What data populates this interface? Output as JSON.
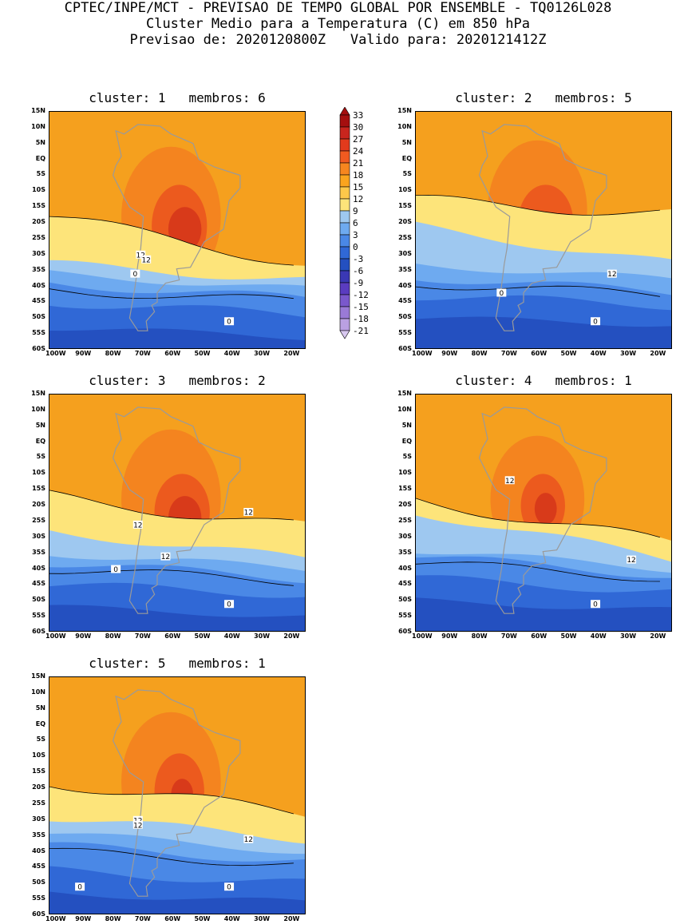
{
  "header": {
    "line1": "CPTEC/INPE/MCT - PREVISAO DE TEMPO GLOBAL POR ENSEMBLE - TQ0126L028",
    "line2": "Cluster Medio para a Temperatura (C) em 850 hPa",
    "line3": "Previsao de: 2020120800Z   Valido para: 2020121412Z"
  },
  "lat_labels": [
    "15N",
    "10N",
    "5N",
    "EQ",
    "5S",
    "10S",
    "15S",
    "20S",
    "25S",
    "30S",
    "35S",
    "40S",
    "45S",
    "50S",
    "55S",
    "60S"
  ],
  "lon_labels": [
    "100W",
    "90W",
    "80W",
    "70W",
    "60W",
    "50W",
    "40W",
    "30W",
    "20W"
  ],
  "colorbar": {
    "levels": [
      "33",
      "30",
      "27",
      "24",
      "21",
      "18",
      "15",
      "12",
      "9",
      "6",
      "3",
      "0",
      "-3",
      "-6",
      "-9",
      "-12",
      "-15",
      "-18",
      "-21"
    ],
    "colors": [
      "#a50f0f",
      "#c8251e",
      "#e23a1c",
      "#f05a20",
      "#f7861f",
      "#fba41e",
      "#fdc84a",
      "#fde47a",
      "#9ec8f0",
      "#6eaaf0",
      "#4a88e6",
      "#3068d6",
      "#2450c0",
      "#3a38b4",
      "#5a3cc0",
      "#7a58cc",
      "#9a7ad6",
      "#baa0e2",
      "#d8c8f0"
    ]
  },
  "panels": [
    {
      "title": "cluster: 1   membros: 6",
      "contour_labels": [
        "12",
        "12",
        "0",
        "0"
      ],
      "colors": {
        "warm": "#f5a01e"
      }
    },
    {
      "title": "cluster: 2   membros: 5",
      "contour_labels": [
        "12",
        "0",
        "0"
      ],
      "colors": {
        "warm": "#f5a01e"
      }
    },
    {
      "title": "cluster: 3   membros: 2",
      "contour_labels": [
        "12",
        "12",
        "12",
        "0",
        "0"
      ],
      "colors": {
        "warm": "#f5a01e"
      }
    },
    {
      "title": "cluster: 4   membros: 1",
      "contour_labels": [
        "12",
        "12",
        "0"
      ],
      "colors": {
        "warm": "#f5a01e"
      }
    },
    {
      "title": "cluster: 5   membros: 1",
      "contour_labels": [
        "12",
        "12",
        "12",
        "0",
        "0"
      ],
      "colors": {
        "warm": "#f5a01e"
      }
    }
  ]
}
